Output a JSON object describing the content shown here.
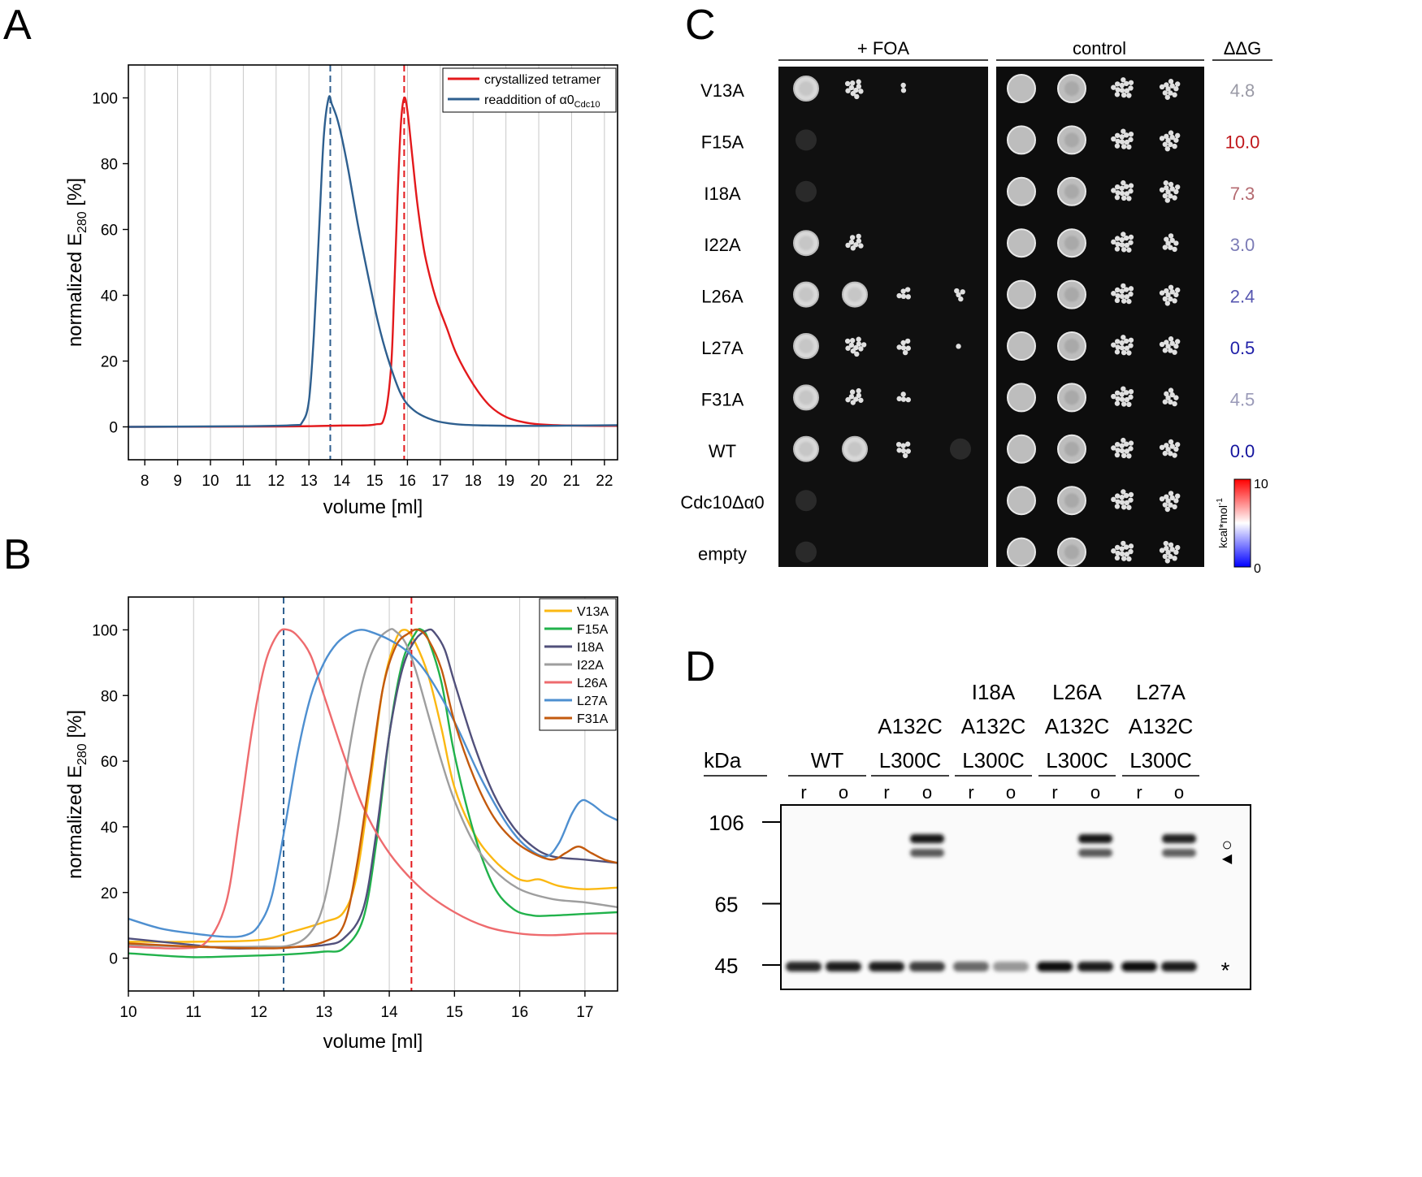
{
  "panels": {
    "A": {
      "letter": "A",
      "xlabel": "volume [ml]",
      "ylabel_main": "normalized E",
      "ylabel_sub": "280",
      "ylabel_tail": " [%]"
    },
    "B": {
      "letter": "B",
      "xlabel": "volume [ml]",
      "ylabel_main": "normalized E",
      "ylabel_sub": "280",
      "ylabel_tail": " [%]"
    },
    "C": {
      "letter": "C",
      "header_foa": "+ FOA",
      "header_control": "control",
      "header_ddg": "ΔΔG",
      "rows": [
        {
          "label": "V13A",
          "ddg": "4.8",
          "color": "#9a9aa6",
          "foa": [
            0.8,
            0.7,
            0.15,
            0
          ],
          "ctrl": [
            1,
            1,
            0.95,
            0.8
          ]
        },
        {
          "label": "F15A",
          "ddg": "10.0",
          "color": "#c0181c",
          "foa": [
            0.05,
            0,
            0,
            0
          ],
          "ctrl": [
            1,
            1,
            0.95,
            0.75
          ]
        },
        {
          "label": "I18A",
          "ddg": "7.3",
          "color": "#b46a70",
          "foa": [
            0.05,
            0,
            0,
            0
          ],
          "ctrl": [
            1,
            1,
            0.95,
            0.85
          ]
        },
        {
          "label": "I22A",
          "ddg": "3.0",
          "color": "#7c7cb6",
          "foa": [
            0.85,
            0.6,
            0,
            0
          ],
          "ctrl": [
            1,
            1,
            0.9,
            0.6
          ]
        },
        {
          "label": "L26A",
          "ddg": "2.4",
          "color": "#5656b0",
          "foa": [
            0.9,
            0.85,
            0.35,
            0.25
          ],
          "ctrl": [
            1,
            1,
            0.95,
            0.75
          ]
        },
        {
          "label": "L27A",
          "ddg": "0.5",
          "color": "#1f1fa8",
          "foa": [
            0.85,
            0.75,
            0.45,
            0.1
          ],
          "ctrl": [
            1,
            1,
            0.9,
            0.7
          ]
        },
        {
          "label": "F31A",
          "ddg": "4.5",
          "color": "#9a9ab8",
          "foa": [
            0.85,
            0.6,
            0.3,
            0
          ],
          "ctrl": [
            1,
            1,
            0.95,
            0.6
          ]
        },
        {
          "label": "WT",
          "ddg": "0.0",
          "color": "#14149e",
          "foa": [
            0.9,
            0.9,
            0.5,
            0.05
          ],
          "ctrl": [
            1,
            1,
            0.9,
            0.7
          ]
        },
        {
          "label": "Cdc10Δα0",
          "ddg": "",
          "color": "#000000",
          "foa": [
            0.03,
            0,
            0,
            0
          ],
          "ctrl": [
            1,
            1,
            0.95,
            0.75
          ]
        },
        {
          "label": "empty",
          "ddg": "",
          "color": "#000000",
          "foa": [
            0.03,
            0,
            0,
            0
          ],
          "ctrl": [
            1,
            1,
            0.95,
            0.85
          ]
        }
      ],
      "colorbar": {
        "unit_main": "kcal*mol",
        "unit_sup": "-1",
        "min": "0",
        "max": "10",
        "low_color": "#0000ff",
        "mid_color": "#ffffff",
        "high_color": "#ff0000"
      }
    },
    "D": {
      "letter": "D",
      "kda_label": "kDa",
      "markers": [
        {
          "label": "106",
          "kda": 106
        },
        {
          "label": "65",
          "kda": 65
        },
        {
          "label": "45",
          "kda": 45
        }
      ],
      "groups": [
        {
          "lines": [
            "WT"
          ]
        },
        {
          "lines": [
            "A132C",
            "L300C"
          ]
        },
        {
          "lines": [
            "I18A",
            "A132C",
            "L300C"
          ]
        },
        {
          "lines": [
            "L26A",
            "A132C",
            "L300C"
          ]
        },
        {
          "lines": [
            "L27A",
            "A132C",
            "L300C"
          ]
        }
      ],
      "lane_labels": [
        "r",
        "o",
        "r",
        "o",
        "r",
        "o",
        "r",
        "o",
        "r",
        "o"
      ],
      "band_45_intensity": [
        0.85,
        0.9,
        0.9,
        0.75,
        0.55,
        0.35,
        0.95,
        0.9,
        0.95,
        0.9
      ],
      "crosslink_intensity": [
        0,
        0,
        0,
        0.95,
        0,
        0,
        0,
        0.95,
        0,
        0.9
      ],
      "symbols": {
        "open": "○",
        "arrow": "◀",
        "star": "*"
      }
    }
  },
  "chart_data": [
    {
      "panel": "A",
      "type": "line",
      "xlabel": "volume [ml]",
      "ylabel": "normalized E280 [%]",
      "xlim": [
        7.5,
        22.4
      ],
      "ylim": [
        -10,
        110
      ],
      "xticks": [
        8,
        9,
        10,
        11,
        12,
        13,
        14,
        15,
        16,
        17,
        18,
        19,
        20,
        21,
        22
      ],
      "yticks": [
        0,
        20,
        40,
        60,
        80,
        100
      ],
      "grid": "vertical",
      "legend_position": "top-right",
      "legend_labels": {
        "crystallized tetramer": "crystallized tetramer",
        "readdition_main": "readdition of α0",
        "readdition_sub": "Cdc10"
      },
      "vlines": [
        {
          "x": 13.65,
          "color": "#2e5f8f"
        },
        {
          "x": 15.9,
          "color": "#e3191c"
        }
      ],
      "series": [
        {
          "name": "crystallized tetramer",
          "color": "#e3191c",
          "x": [
            7.5,
            12,
            14,
            15,
            15.3,
            15.5,
            15.6,
            15.7,
            15.8,
            15.9,
            16,
            16.15,
            16.3,
            16.5,
            16.7,
            16.9,
            17.2,
            17.5,
            18,
            18.5,
            19,
            19.5,
            20,
            21,
            22.4
          ],
          "y": [
            0,
            0.1,
            0.4,
            0.7,
            3,
            18,
            42,
            70,
            92,
            100,
            96,
            82,
            68,
            54,
            45,
            38,
            30,
            22,
            13,
            6.5,
            3,
            1.5,
            0.8,
            0.4,
            0.3
          ]
        },
        {
          "name": "readdition of α0Cdc10",
          "color": "#2e5f8f",
          "x": [
            7.5,
            11,
            12.5,
            12.8,
            13,
            13.15,
            13.3,
            13.45,
            13.6,
            13.7,
            13.85,
            14,
            14.2,
            14.5,
            14.8,
            15.1,
            15.4,
            15.8,
            16.2,
            16.8,
            17.5,
            18.5,
            20,
            22.4
          ],
          "y": [
            0,
            0.2,
            0.5,
            1.5,
            8,
            28,
            58,
            88,
            100,
            98,
            94,
            88,
            78,
            61,
            46,
            32,
            21,
            10,
            5,
            2,
            0.8,
            0.4,
            0.3,
            0.5
          ]
        }
      ]
    },
    {
      "panel": "B",
      "type": "line",
      "xlabel": "volume [ml]",
      "ylabel": "normalized E280 [%]",
      "xlim": [
        10,
        17.5
      ],
      "ylim": [
        -10,
        110
      ],
      "xticks": [
        10,
        11,
        12,
        13,
        14,
        15,
        16,
        17
      ],
      "yticks": [
        0,
        20,
        40,
        60,
        80,
        100
      ],
      "grid": "vertical",
      "legend_position": "top-right",
      "vlines": [
        {
          "x": 12.38,
          "color": "#2e5f8f"
        },
        {
          "x": 14.34,
          "color": "#e3191c"
        }
      ],
      "series": [
        {
          "name": "V13A",
          "color": "#fbb812",
          "x": [
            10,
            11,
            12,
            12.5,
            13,
            13.3,
            13.5,
            13.7,
            13.9,
            14.1,
            14.25,
            14.4,
            14.6,
            14.8,
            15,
            15.3,
            15.6,
            15.9,
            16.1,
            16.3,
            16.6,
            17,
            17.5
          ],
          "y": [
            5,
            5,
            5.5,
            8,
            11,
            14,
            25,
            52,
            82,
            97,
            100,
            96,
            86,
            70,
            52,
            38,
            30,
            25,
            23.5,
            24,
            22,
            21,
            21.5
          ]
        },
        {
          "name": "F15A",
          "color": "#21b24b",
          "x": [
            10,
            10.5,
            11,
            11.5,
            12,
            12.5,
            13,
            13.3,
            13.6,
            13.8,
            14,
            14.2,
            14.4,
            14.5,
            14.6,
            14.8,
            15,
            15.3,
            15.6,
            15.9,
            16.2,
            16.5,
            17,
            17.5
          ],
          "y": [
            1.5,
            0.8,
            0.3,
            0.5,
            0.8,
            1.2,
            2,
            3,
            12,
            35,
            68,
            90,
            99,
            100,
            97,
            84,
            62,
            38,
            22,
            15,
            13,
            13,
            13.5,
            14
          ]
        },
        {
          "name": "I18A",
          "color": "#51507b",
          "x": [
            10,
            11,
            11.5,
            12,
            12.5,
            13,
            13.3,
            13.6,
            13.8,
            14,
            14.2,
            14.4,
            14.6,
            14.7,
            14.85,
            15,
            15.3,
            15.6,
            15.9,
            16.2,
            16.5,
            17,
            17.5
          ],
          "y": [
            6,
            4,
            3,
            3,
            3.3,
            4,
            6,
            15,
            38,
            68,
            88,
            97,
            100,
            99,
            94,
            84,
            65,
            50,
            40,
            34,
            31,
            30,
            29
          ]
        },
        {
          "name": "I22A",
          "color": "#9e9e9e",
          "x": [
            10,
            11,
            12,
            12.5,
            12.8,
            13,
            13.2,
            13.4,
            13.6,
            13.8,
            14,
            14.1,
            14.25,
            14.4,
            14.6,
            14.8,
            15,
            15.3,
            15.6,
            16,
            16.5,
            17,
            17.5
          ],
          "y": [
            4,
            3.5,
            3.5,
            4,
            8,
            17,
            38,
            65,
            85,
            96,
            100,
            99.5,
            96,
            88,
            74,
            60,
            48,
            35,
            27,
            21,
            18,
            17,
            15.5
          ]
        },
        {
          "name": "L26A",
          "color": "#ee6b6e",
          "x": [
            10,
            10.8,
            11.2,
            11.5,
            11.7,
            11.9,
            12.1,
            12.3,
            12.45,
            12.6,
            12.8,
            13,
            13.3,
            13.6,
            14,
            14.5,
            15,
            15.5,
            16,
            16.5,
            17,
            17.5
          ],
          "y": [
            3.5,
            3,
            5,
            17,
            42,
            70,
            90,
            99,
            100,
            98,
            92,
            80,
            62,
            46,
            32,
            21,
            14,
            9.5,
            7.5,
            7,
            7.5,
            7.5
          ]
        },
        {
          "name": "L27A",
          "color": "#4e8fd0",
          "x": [
            10,
            10.5,
            11,
            11.5,
            11.8,
            12,
            12.2,
            12.4,
            12.6,
            12.8,
            13,
            13.2,
            13.4,
            13.55,
            13.7,
            14,
            14.3,
            14.6,
            15,
            15.4,
            15.8,
            16.1,
            16.4,
            16.6,
            16.8,
            16.95,
            17.1,
            17.3,
            17.5
          ],
          "y": [
            12,
            9,
            7.5,
            6.5,
            7,
            10,
            19,
            40,
            63,
            80,
            90,
            96,
            99,
            100,
            99.5,
            97,
            93,
            86,
            72,
            55,
            41,
            34,
            31,
            35,
            44,
            48,
            47,
            44,
            42
          ]
        },
        {
          "name": "F31A",
          "color": "#c35a0e",
          "x": [
            10,
            11,
            12,
            12.5,
            13,
            13.3,
            13.5,
            13.7,
            13.9,
            14.1,
            14.3,
            14.45,
            14.6,
            14.8,
            15,
            15.3,
            15.6,
            15.9,
            16.2,
            16.5,
            16.7,
            16.9,
            17.1,
            17.3,
            17.5
          ],
          "y": [
            4.5,
            3.5,
            3,
            3.3,
            5,
            10,
            28,
            55,
            82,
            95,
            99,
            100,
            97,
            88,
            72,
            55,
            43,
            36,
            32,
            30,
            32,
            34,
            32,
            30,
            29
          ]
        }
      ]
    }
  ]
}
